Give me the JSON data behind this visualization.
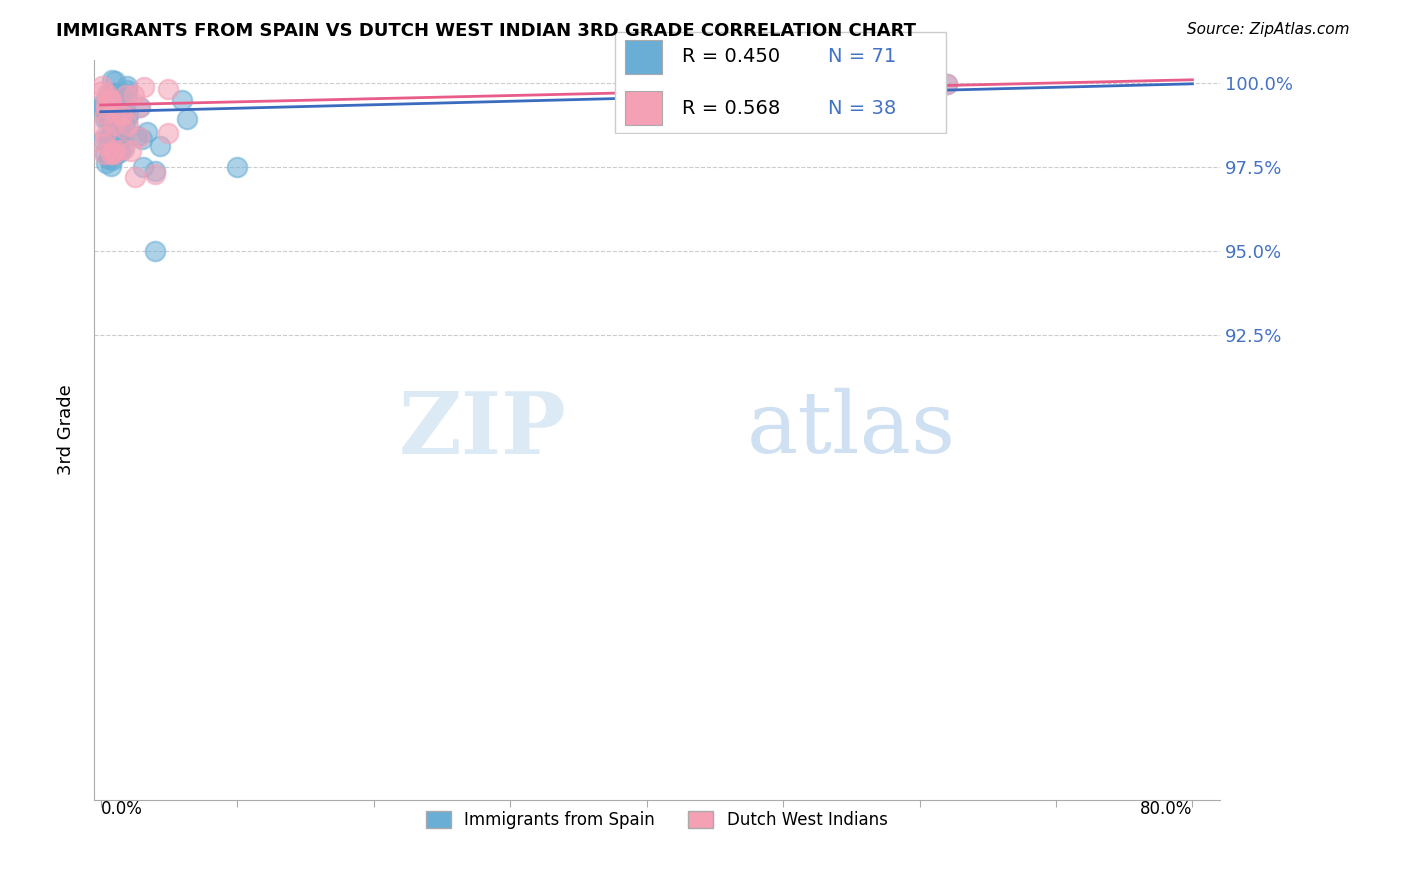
{
  "title": "IMMIGRANTS FROM SPAIN VS DUTCH WEST INDIAN 3RD GRADE CORRELATION CHART",
  "source": "Source: ZipAtlas.com",
  "ylabel": "3rd Grade",
  "ytick_labels": [
    "100.0%",
    "97.5%",
    "95.0%",
    "92.5%"
  ],
  "ytick_values": [
    1.0,
    0.975,
    0.95,
    0.925
  ],
  "xlim": [
    -0.005,
    0.82
  ],
  "ylim": [
    0.787,
    1.007
  ],
  "legend_r1": "R = 0.450",
  "legend_n1": "N = 71",
  "legend_r2": "R = 0.568",
  "legend_n2": "N = 38",
  "color_blue": "#6aaed6",
  "color_pink": "#f4a0b5",
  "color_blue_line": "#3a6bbf",
  "color_pink_line": "#e85c8a",
  "label_blue": "Immigrants from Spain",
  "label_pink": "Dutch West Indians",
  "watermark_zip": "ZIP",
  "watermark_atlas": "atlas",
  "blue_trend_x": [
    0.0,
    0.8
  ],
  "blue_trend_y": [
    0.9915,
    0.9998
  ],
  "pink_trend_x": [
    0.0,
    0.8
  ],
  "pink_trend_y": [
    0.9935,
    1.001
  ]
}
